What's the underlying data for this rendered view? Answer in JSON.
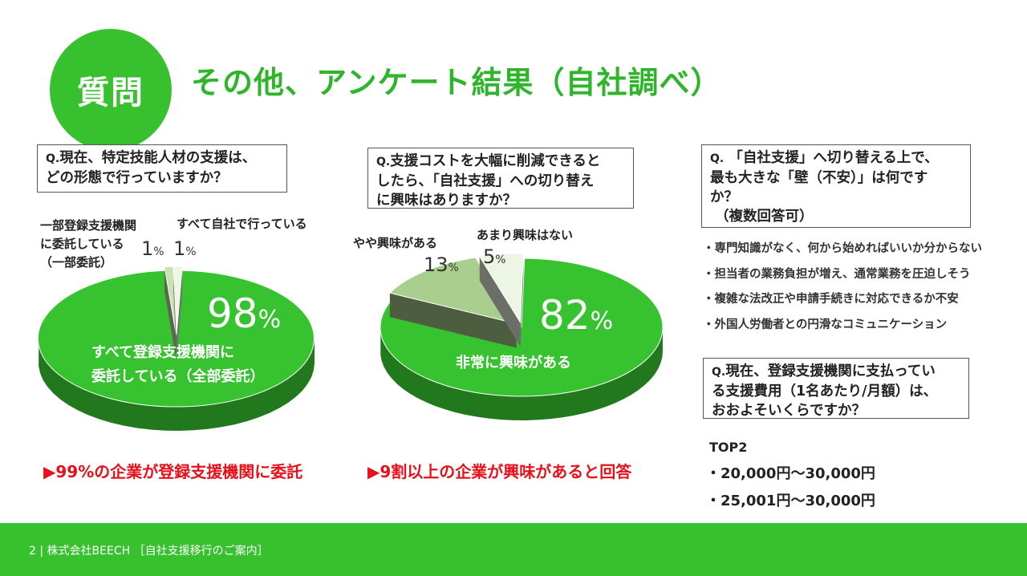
{
  "header": {
    "badge": "質問",
    "title": "その他、アンケート結果（自社調べ）"
  },
  "chart_data": [
    {
      "type": "pie",
      "question_prefix": "Q.",
      "question_lines": [
        "現在、特定技能人材の支援は、",
        "どの形態で行っていますか？"
      ],
      "slices": [
        {
          "label_lines": [
            "すべて登録支援機関に",
            "委託している（全部委託）"
          ],
          "value": 98,
          "color": "#37c22f"
        },
        {
          "label_lines": [
            "一部登録支援機関",
            "に委託している",
            "（一部委託）"
          ],
          "value": 1,
          "color": "#c9e2b0"
        },
        {
          "label_lines": [
            "すべて自社で行っている"
          ],
          "value": 1,
          "color": "#eef6e4"
        }
      ],
      "unit": "%",
      "finding": "▶99%の企業が登録支援機関に委託"
    },
    {
      "type": "pie",
      "question_prefix": "Q.",
      "question_lines": [
        "支援コストを大幅に削減できると",
        "したら、「自社支援」への切り替え",
        "に興味はありますか？"
      ],
      "slices": [
        {
          "label_lines": [
            "非常に興味がある"
          ],
          "value": 82,
          "color": "#37c22f"
        },
        {
          "label_lines": [
            "やや興味がある"
          ],
          "value": 13,
          "color": "#a9cf8e"
        },
        {
          "label_lines": [
            "あまり興味はない"
          ],
          "value": 5,
          "color": "#edf6e4"
        }
      ],
      "unit": "%",
      "finding": "▶9割以上の企業が興味があると回答"
    }
  ],
  "q3": {
    "prefix": "Q.",
    "lines": [
      "「自社支援」へ切り替える上で、",
      "最も大きな「壁（不安）」は何です",
      "か？",
      "（複数回答可）"
    ],
    "items": [
      "・専門知識がなく、何から始めればいいか分からない",
      "・担当者の業務負担が増え、通常業務を圧迫しそう",
      "・複雑な法改正や申請手続きに対応できるか不安",
      "・外国人労働者との円滑なコミュニケーション"
    ]
  },
  "q4": {
    "prefix": "Q.",
    "lines": [
      "現在、登録支援機関に支払ってい",
      "る支援費用（1名あたり/月額）は、",
      "おおよそいくらですか？"
    ],
    "top_label": "TOP2",
    "top_items": [
      "・20,000円〜30,000円",
      "・25,001円〜30,000円"
    ]
  },
  "footer": {
    "text": "2 | 株式会社BEECH ［自社支援移行のご案内］"
  }
}
